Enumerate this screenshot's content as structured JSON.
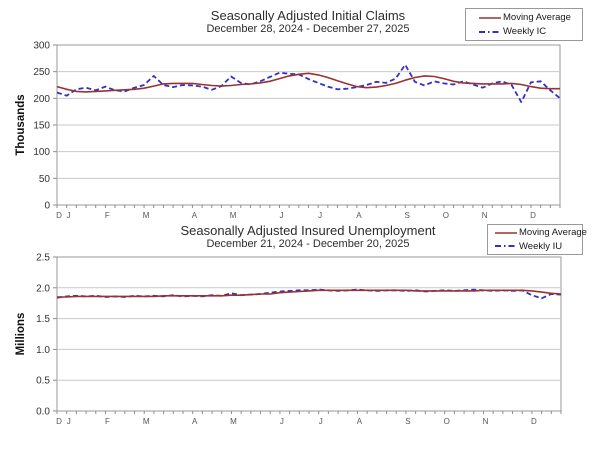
{
  "page": {
    "background": "#ffffff"
  },
  "colors": {
    "moving_average": "#993333",
    "weekly": "#3131c4",
    "gridline": "#c9c9c9",
    "axis": "#8c8c8c",
    "plot_border": "#9a9a9a",
    "tick_text": "#333333",
    "month_text": "#555555"
  },
  "chart_data": [
    {
      "type": "line",
      "title": "Seasonally Adjusted Initial Claims",
      "subtitle": "December 28, 2024 - December 27, 2025",
      "ylabel": "Thousands",
      "ylim": [
        0,
        300
      ],
      "y_ticks": [
        "0",
        "50",
        "100",
        "150",
        "200",
        "250",
        "300"
      ],
      "grid": "horizontal",
      "legend_position": "top-right",
      "x_ticks": [
        {
          "label": "D",
          "week": 0
        },
        {
          "label": "J",
          "week": 1
        },
        {
          "label": "F",
          "week": 5
        },
        {
          "label": "M",
          "week": 9
        },
        {
          "label": "A",
          "week": 14
        },
        {
          "label": "M",
          "week": 18
        },
        {
          "label": "J",
          "week": 23
        },
        {
          "label": "J",
          "week": 27
        },
        {
          "label": "A",
          "week": 31
        },
        {
          "label": "S",
          "week": 36
        },
        {
          "label": "O",
          "week": 40
        },
        {
          "label": "N",
          "week": 44
        },
        {
          "label": "D",
          "week": 49
        }
      ],
      "series": [
        {
          "name": "Moving Average",
          "color": "#993333",
          "dash": "solid",
          "values": [
            222,
            217,
            213,
            212,
            213,
            214,
            215,
            216,
            217,
            219,
            223,
            227,
            228,
            228,
            228,
            226,
            224,
            223,
            224,
            226,
            227,
            229,
            232,
            237,
            242,
            245,
            247,
            244,
            239,
            233,
            227,
            222,
            220,
            221,
            224,
            228,
            234,
            239,
            242,
            241,
            237,
            232,
            229,
            228,
            227,
            227,
            227,
            228,
            226,
            222,
            219,
            218,
            218
          ]
        },
        {
          "name": "Weekly IC",
          "color": "#3131c4",
          "dash": "dashed",
          "values": [
            211,
            205,
            217,
            220,
            215,
            222,
            215,
            213,
            220,
            225,
            242,
            225,
            221,
            225,
            224,
            222,
            216,
            223,
            241,
            229,
            226,
            232,
            240,
            248,
            246,
            245,
            236,
            229,
            222,
            217,
            218,
            221,
            225,
            231,
            229,
            237,
            263,
            231,
            224,
            232,
            228,
            226,
            232,
            226,
            220,
            228,
            232,
            225,
            193,
            230,
            232,
            215,
            200
          ]
        }
      ]
    },
    {
      "type": "line",
      "title": "Seasonally Adjusted Insured Unemployment",
      "subtitle": "December 21, 2024 - December 20, 2025",
      "ylabel": "Millions",
      "ylim": [
        0,
        2.5
      ],
      "y_ticks": [
        "0.0",
        "0.5",
        "1.0",
        "1.5",
        "2.0",
        "2.5"
      ],
      "grid": "horizontal",
      "legend_position": "top-right",
      "x_ticks": [
        {
          "label": "D",
          "week": 0
        },
        {
          "label": "J",
          "week": 1
        },
        {
          "label": "F",
          "week": 5
        },
        {
          "label": "M",
          "week": 9
        },
        {
          "label": "A",
          "week": 14
        },
        {
          "label": "M",
          "week": 18
        },
        {
          "label": "J",
          "week": 23
        },
        {
          "label": "J",
          "week": 27
        },
        {
          "label": "A",
          "week": 31
        },
        {
          "label": "S",
          "week": 36
        },
        {
          "label": "O",
          "week": 40
        },
        {
          "label": "N",
          "week": 44
        },
        {
          "label": "D",
          "week": 49
        }
      ],
      "series": [
        {
          "name": "Moving Average",
          "color": "#993333",
          "dash": "solid",
          "values": [
            1.85,
            1.85,
            1.86,
            1.86,
            1.86,
            1.86,
            1.86,
            1.86,
            1.86,
            1.86,
            1.86,
            1.87,
            1.87,
            1.87,
            1.87,
            1.87,
            1.87,
            1.87,
            1.88,
            1.88,
            1.89,
            1.9,
            1.9,
            1.92,
            1.93,
            1.94,
            1.95,
            1.96,
            1.96,
            1.96,
            1.96,
            1.96,
            1.96,
            1.96,
            1.96,
            1.96,
            1.96,
            1.95,
            1.95,
            1.95,
            1.95,
            1.95,
            1.95,
            1.95,
            1.96,
            1.96,
            1.96,
            1.96,
            1.96,
            1.95,
            1.93,
            1.91,
            1.9
          ]
        },
        {
          "name": "Weekly IU",
          "color": "#3131c4",
          "dash": "dashed",
          "values": [
            1.84,
            1.86,
            1.87,
            1.86,
            1.87,
            1.85,
            1.86,
            1.85,
            1.87,
            1.86,
            1.87,
            1.86,
            1.88,
            1.86,
            1.87,
            1.86,
            1.88,
            1.87,
            1.91,
            1.88,
            1.89,
            1.9,
            1.92,
            1.94,
            1.95,
            1.96,
            1.96,
            1.97,
            1.96,
            1.95,
            1.96,
            1.97,
            1.96,
            1.95,
            1.96,
            1.96,
            1.95,
            1.96,
            1.94,
            1.95,
            1.96,
            1.95,
            1.96,
            1.97,
            1.96,
            1.95,
            1.96,
            1.95,
            1.96,
            1.88,
            1.83,
            1.9,
            1.89
          ]
        }
      ]
    }
  ]
}
